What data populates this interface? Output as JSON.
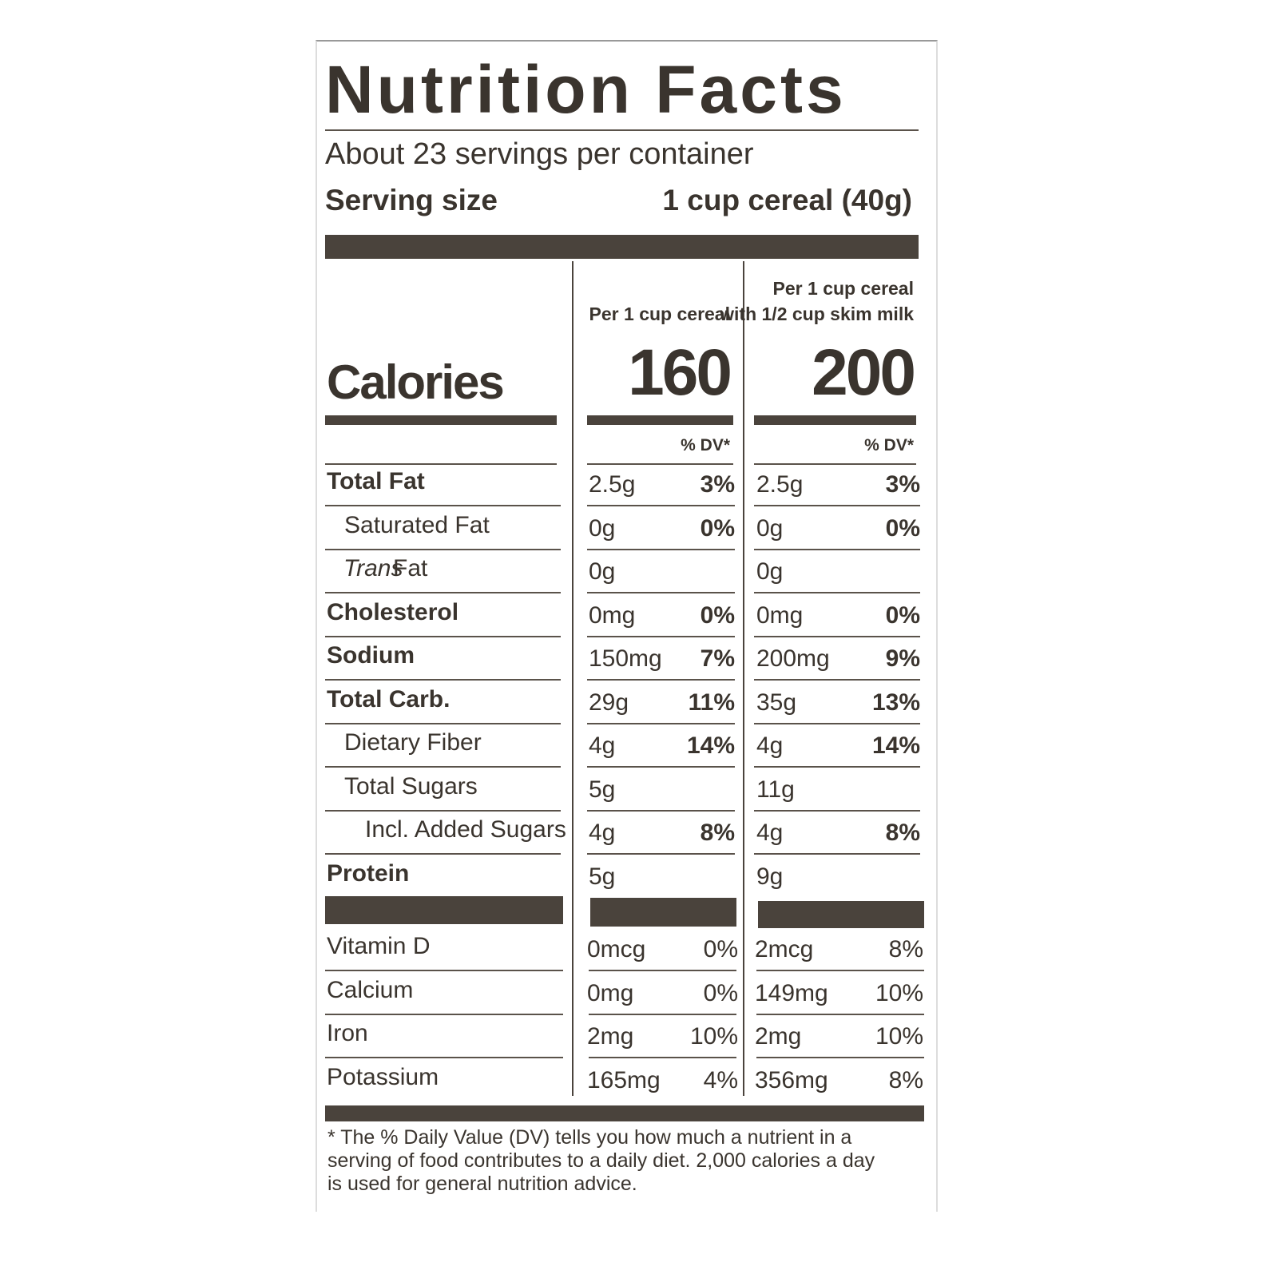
{
  "title": "Nutrition Facts",
  "servings": "About 23 servings per container",
  "serving_size": {
    "label": "Serving size",
    "value": "1 cup cereal (40g)"
  },
  "columns": [
    {
      "heading": [
        "Per 1 cup cereal"
      ]
    },
    {
      "heading": [
        "Per 1 cup cereal",
        "with 1/2 cup skim milk"
      ]
    }
  ],
  "calories": {
    "label": "Calories",
    "values": [
      "160",
      "200"
    ]
  },
  "dv_header": "% DV*",
  "nutrients": [
    {
      "label": "Total Fat",
      "style": "bold",
      "values": [
        [
          "2.5g",
          "3%"
        ],
        [
          "2.5g",
          "3%"
        ]
      ]
    },
    {
      "label": "Saturated Fat",
      "style": "indent",
      "values": [
        [
          "0g",
          "0%"
        ],
        [
          "0g",
          "0%"
        ]
      ]
    },
    {
      "label_italic": "Trans",
      "label": "Fat",
      "style": "indent",
      "values": [
        [
          "0g",
          null
        ],
        [
          "0g",
          null
        ]
      ]
    },
    {
      "label": "Cholesterol",
      "style": "bold",
      "values": [
        [
          "0mg",
          "0%"
        ],
        [
          "0mg",
          "0%"
        ]
      ]
    },
    {
      "label": "Sodium",
      "style": "bold",
      "values": [
        [
          "150mg",
          "7%"
        ],
        [
          "200mg",
          "9%"
        ]
      ]
    },
    {
      "label": "Total Carb.",
      "style": "bold",
      "values": [
        [
          "29g",
          "11%"
        ],
        [
          "35g",
          "13%"
        ]
      ]
    },
    {
      "label": "Dietary Fiber",
      "style": "indent",
      "values": [
        [
          "4g",
          "14%"
        ],
        [
          "4g",
          "14%"
        ]
      ]
    },
    {
      "label": "Total Sugars",
      "style": "indent",
      "values": [
        [
          "5g",
          null
        ],
        [
          "11g",
          null
        ]
      ]
    },
    {
      "label": "Incl. Added Sugars",
      "style": "indent2",
      "values": [
        [
          "4g",
          "8%"
        ],
        [
          "4g",
          "8%"
        ]
      ]
    },
    {
      "label": "Protein",
      "style": "bold",
      "values": [
        [
          "5g",
          null
        ],
        [
          "9g",
          null
        ]
      ]
    }
  ],
  "vitamins": [
    {
      "label": "Vitamin D",
      "values": [
        [
          "0mcg",
          "0%"
        ],
        [
          "2mcg",
          "8%"
        ]
      ]
    },
    {
      "label": "Calcium",
      "values": [
        [
          "0mg",
          "0%"
        ],
        [
          "149mg",
          "10%"
        ]
      ]
    },
    {
      "label": "Iron",
      "values": [
        [
          "2mg",
          "10%"
        ],
        [
          "2mg",
          "10%"
        ]
      ]
    },
    {
      "label": "Potassium",
      "values": [
        [
          "165mg",
          "4%"
        ],
        [
          "356mg",
          "8%"
        ]
      ]
    }
  ],
  "footnote": "* The % Daily Value (DV) tells you how much a nutrient in a serving of food contributes to a daily diet. 2,000 calories a day is used for general nutrition advice."
}
